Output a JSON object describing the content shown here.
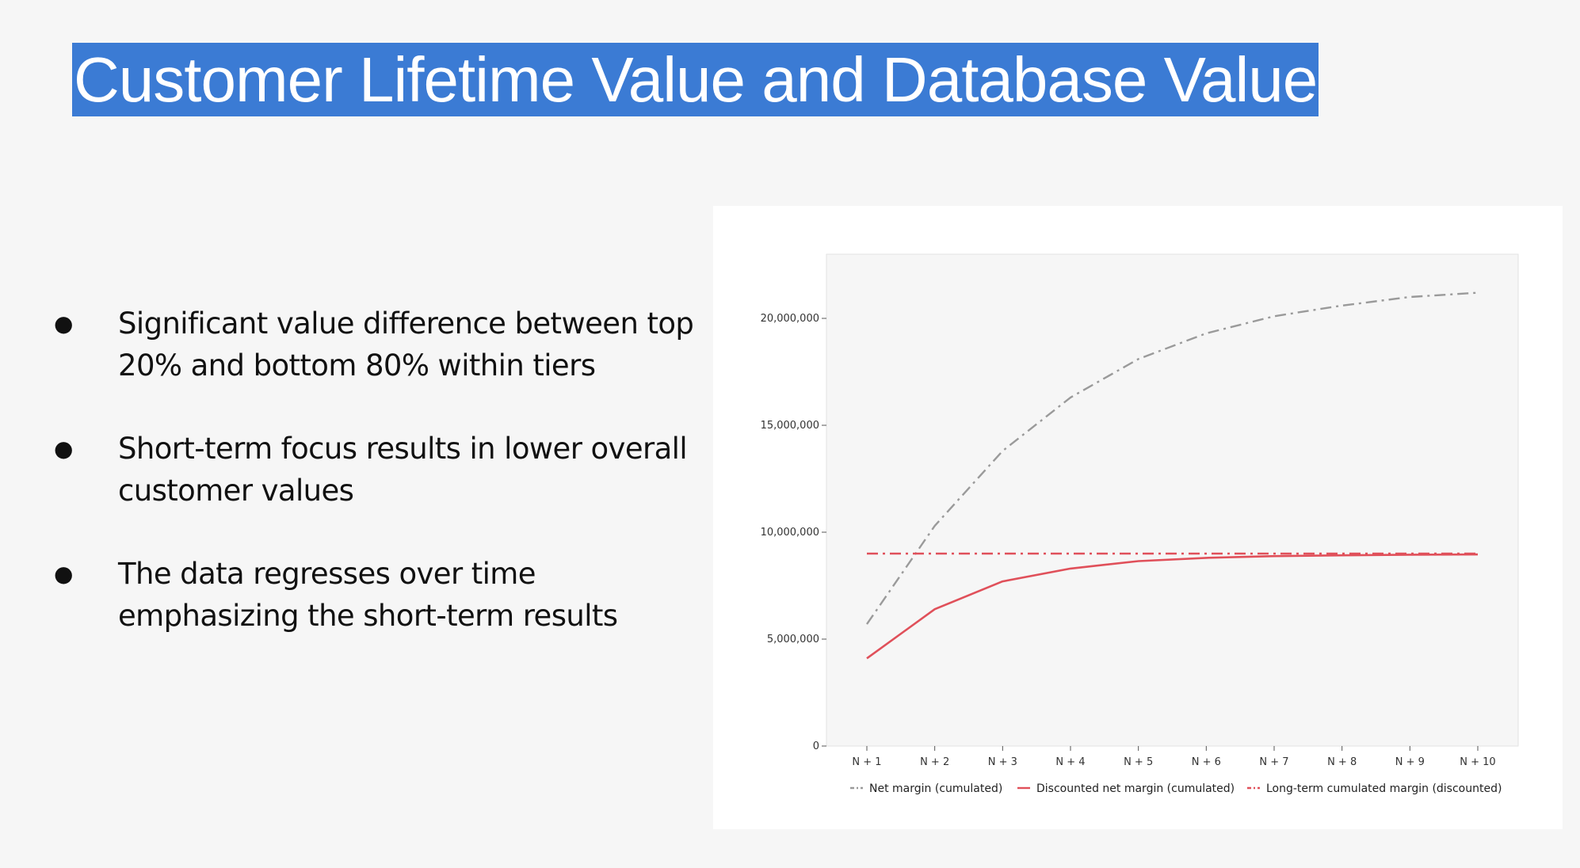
{
  "slide": {
    "title": "Customer Lifetime Value and Database Value",
    "bullets": [
      "Significant value difference between top 20% and bottom 80% within tiers",
      "Short-term focus results in lower overall customer values",
      "The data regresses over time emphasizing the short-term results"
    ]
  },
  "chart_data": {
    "type": "line",
    "title": "",
    "xlabel": "",
    "ylabel": "",
    "categories": [
      "N + 1",
      "N + 2",
      "N + 3",
      "N + 4",
      "N + 5",
      "N + 6",
      "N + 7",
      "N + 8",
      "N + 9",
      "N + 10"
    ],
    "ylim": [
      0,
      23000000
    ],
    "yticks": [
      0,
      5000000,
      10000000,
      15000000,
      20000000
    ],
    "ytick_labels": [
      "0",
      "5,000,000",
      "10,000,000",
      "15,000,000",
      "20,000,000"
    ],
    "grid": false,
    "legend_position": "bottom",
    "series": [
      {
        "name": "Net margin (cumulated)",
        "color": "#9a9a9a",
        "style": "dashdot",
        "values": [
          5700000,
          10300000,
          13800000,
          16300000,
          18100000,
          19300000,
          20100000,
          20600000,
          21000000,
          21200000
        ]
      },
      {
        "name": "Discounted net margin (cumulated)",
        "color": "#e0505a",
        "style": "solid",
        "values": [
          4100000,
          6400000,
          7700000,
          8300000,
          8650000,
          8800000,
          8880000,
          8920000,
          8950000,
          8960000
        ]
      },
      {
        "name": "Long-term cumulated margin (discounted)",
        "color": "#e0505a",
        "style": "dashdot",
        "values": [
          9000000,
          9000000,
          9000000,
          9000000,
          9000000,
          9000000,
          9000000,
          9000000,
          9000000,
          9000000
        ]
      }
    ]
  }
}
